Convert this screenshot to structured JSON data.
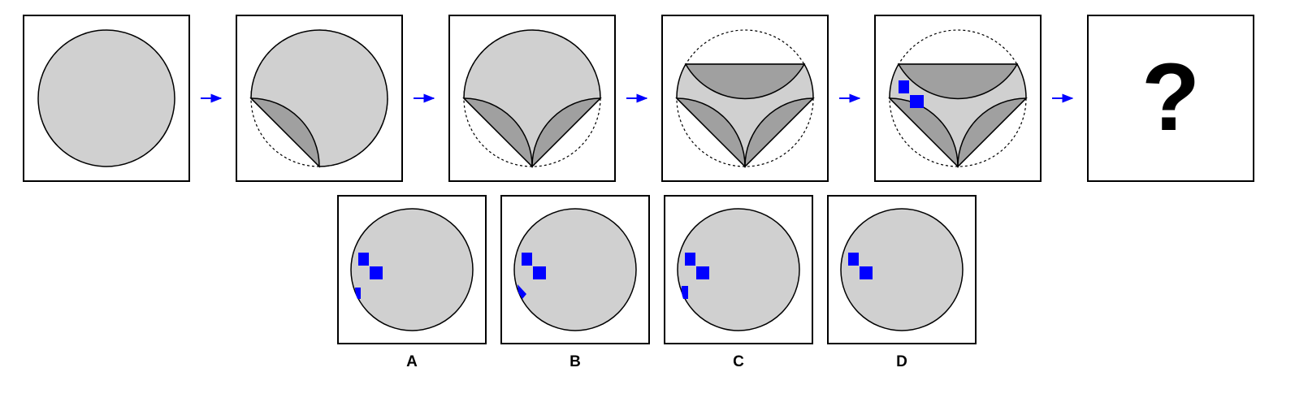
{
  "puzzle": {
    "sequence_count": 5,
    "question_mark": "?"
  },
  "options": {
    "a": "A",
    "b": "B",
    "c": "C",
    "d": "D"
  },
  "colors": {
    "light_fill": "#d0d0d0",
    "dark_fill": "#a0a0a0",
    "accent_blue": "#0000ff",
    "frame": "#000000",
    "arrow": "#0000ff"
  }
}
